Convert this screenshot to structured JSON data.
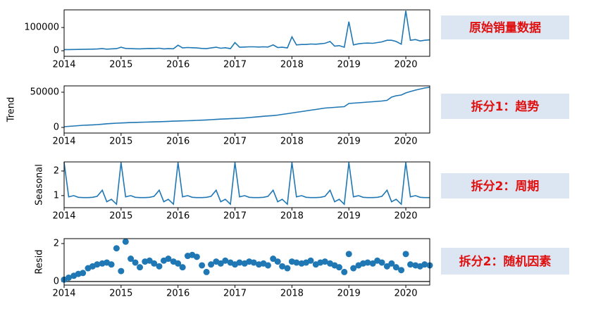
{
  "chart_data": [
    {
      "type": "line",
      "color": "#1f77b4",
      "x": [
        2014.0,
        2014.08,
        2014.17,
        2014.25,
        2014.33,
        2014.42,
        2014.5,
        2014.58,
        2014.67,
        2014.75,
        2014.83,
        2014.92,
        2015.0,
        2015.08,
        2015.17,
        2015.25,
        2015.33,
        2015.42,
        2015.5,
        2015.58,
        2015.67,
        2015.75,
        2015.83,
        2015.92,
        2016.0,
        2016.08,
        2016.17,
        2016.25,
        2016.33,
        2016.42,
        2016.5,
        2016.58,
        2016.67,
        2016.75,
        2016.83,
        2016.92,
        2017.0,
        2017.08,
        2017.17,
        2017.25,
        2017.33,
        2017.42,
        2017.5,
        2017.58,
        2017.67,
        2017.75,
        2017.83,
        2017.92,
        2018.0,
        2018.08,
        2018.17,
        2018.25,
        2018.33,
        2018.42,
        2018.5,
        2018.58,
        2018.67,
        2018.75,
        2018.83,
        2018.92,
        2019.0,
        2019.08,
        2019.17,
        2019.25,
        2019.33,
        2019.42,
        2019.5,
        2019.58,
        2019.67,
        2019.75,
        2019.83,
        2019.92,
        2020.0,
        2020.08,
        2020.17,
        2020.25,
        2020.33,
        2020.42
      ],
      "values": [
        5000,
        5200,
        5500,
        5800,
        6000,
        6500,
        7000,
        7500,
        9000,
        7000,
        8000,
        9000,
        15000,
        10000,
        9000,
        8500,
        8000,
        9000,
        10000,
        9500,
        11000,
        8000,
        9000,
        8500,
        24000,
        12000,
        14000,
        13000,
        12000,
        10000,
        9000,
        12000,
        15000,
        11000,
        13000,
        9000,
        35000,
        15000,
        16000,
        17000,
        17000,
        16000,
        17000,
        16000,
        25000,
        14000,
        15000,
        12000,
        60000,
        25000,
        27000,
        27000,
        29000,
        28000,
        30000,
        32000,
        40000,
        20000,
        22000,
        15000,
        125000,
        25000,
        30000,
        32000,
        33000,
        32000,
        35000,
        38000,
        45000,
        45000,
        40000,
        28000,
        172000,
        45000,
        48000,
        42000,
        45000,
        47000
      ],
      "xlim": [
        2014,
        2020.42
      ],
      "xticks": [
        2014,
        2015,
        2016,
        2017,
        2018,
        2019,
        2020
      ],
      "ylim": [
        -24000,
        176000
      ],
      "yticks": [
        0,
        100000
      ],
      "annotation": "原始销量数据"
    },
    {
      "type": "line",
      "color": "#1f77b4",
      "ylabel": "Trend",
      "x": [
        2014.0,
        2014.08,
        2014.17,
        2014.25,
        2014.33,
        2014.42,
        2014.5,
        2014.58,
        2014.67,
        2014.75,
        2014.83,
        2014.92,
        2015.0,
        2015.08,
        2015.17,
        2015.25,
        2015.33,
        2015.42,
        2015.5,
        2015.58,
        2015.67,
        2015.75,
        2015.83,
        2015.92,
        2016.0,
        2016.08,
        2016.17,
        2016.25,
        2016.33,
        2016.42,
        2016.5,
        2016.58,
        2016.67,
        2016.75,
        2016.83,
        2016.92,
        2017.0,
        2017.08,
        2017.17,
        2017.25,
        2017.33,
        2017.42,
        2017.5,
        2017.58,
        2017.67,
        2017.75,
        2017.83,
        2017.92,
        2018.0,
        2018.08,
        2018.17,
        2018.25,
        2018.33,
        2018.42,
        2018.5,
        2018.58,
        2018.67,
        2018.75,
        2018.83,
        2018.92,
        2019.0,
        2019.08,
        2019.17,
        2019.25,
        2019.33,
        2019.42,
        2019.5,
        2019.58,
        2019.67,
        2019.75,
        2019.83,
        2019.92,
        2020.0,
        2020.08,
        2020.17,
        2020.25,
        2020.33,
        2020.42
      ],
      "values": [
        1000,
        1500,
        2000,
        2500,
        3000,
        3300,
        3600,
        4000,
        4600,
        5200,
        5600,
        6000,
        6300,
        6600,
        6900,
        7100,
        7300,
        7500,
        7700,
        7900,
        8100,
        8300,
        8600,
        8900,
        9100,
        9300,
        9500,
        9700,
        10000,
        10300,
        10600,
        11000,
        11400,
        11800,
        12100,
        12400,
        12700,
        13000,
        13400,
        14000,
        14600,
        15200,
        15800,
        16300,
        16800,
        17500,
        18500,
        19500,
        20500,
        21500,
        22500,
        23500,
        24500,
        25500,
        26500,
        27500,
        28000,
        28500,
        29000,
        29500,
        34000,
        34500,
        35000,
        35500,
        36000,
        36500,
        37000,
        37500,
        38500,
        43000,
        45000,
        46000,
        49000,
        51000,
        53000,
        54500,
        56000,
        57000
      ],
      "xlim": [
        2014,
        2020.42
      ],
      "xticks": [
        2014,
        2015,
        2016,
        2017,
        2018,
        2019,
        2020
      ],
      "ylim": [
        -8000,
        59000
      ],
      "yticks": [
        0,
        50000
      ],
      "annotation": "拆分1：趋势"
    },
    {
      "type": "line",
      "color": "#1f77b4",
      "ylabel": "Seasonal",
      "x": [
        2014.0,
        2014.08,
        2014.17,
        2014.25,
        2014.33,
        2014.42,
        2014.5,
        2014.58,
        2014.67,
        2014.75,
        2014.83,
        2014.92,
        2015.0,
        2015.08,
        2015.17,
        2015.25,
        2015.33,
        2015.42,
        2015.5,
        2015.58,
        2015.67,
        2015.75,
        2015.83,
        2015.92,
        2016.0,
        2016.08,
        2016.17,
        2016.25,
        2016.33,
        2016.42,
        2016.5,
        2016.58,
        2016.67,
        2016.75,
        2016.83,
        2016.92,
        2017.0,
        2017.08,
        2017.17,
        2017.25,
        2017.33,
        2017.42,
        2017.5,
        2017.58,
        2017.67,
        2017.75,
        2017.83,
        2017.92,
        2018.0,
        2018.08,
        2018.17,
        2018.25,
        2018.33,
        2018.42,
        2018.5,
        2018.58,
        2018.67,
        2018.75,
        2018.83,
        2018.92,
        2019.0,
        2019.08,
        2019.17,
        2019.25,
        2019.33,
        2019.42,
        2019.5,
        2019.58,
        2019.67,
        2019.75,
        2019.83,
        2019.92,
        2020.0,
        2020.08,
        2020.17,
        2020.25,
        2020.33,
        2020.42
      ],
      "values": [
        2.35,
        0.95,
        1.0,
        0.93,
        0.92,
        0.92,
        0.93,
        0.97,
        1.22,
        0.75,
        0.85,
        0.65,
        2.35,
        0.95,
        1.0,
        0.93,
        0.92,
        0.92,
        0.93,
        0.97,
        1.22,
        0.75,
        0.85,
        0.65,
        2.35,
        0.95,
        1.0,
        0.93,
        0.92,
        0.92,
        0.93,
        0.97,
        1.22,
        0.75,
        0.85,
        0.65,
        2.35,
        0.95,
        1.0,
        0.93,
        0.92,
        0.92,
        0.93,
        0.97,
        1.22,
        0.75,
        0.85,
        0.65,
        2.35,
        0.95,
        1.0,
        0.93,
        0.92,
        0.92,
        0.93,
        0.97,
        1.22,
        0.75,
        0.85,
        0.65,
        2.35,
        0.95,
        1.0,
        0.93,
        0.92,
        0.92,
        0.93,
        0.97,
        1.22,
        0.75,
        0.85,
        0.65,
        2.35,
        0.95,
        1.0,
        0.93,
        0.92,
        0.92
      ],
      "xlim": [
        2014,
        2020.42
      ],
      "xticks": [
        2014,
        2015,
        2016,
        2017,
        2018,
        2019,
        2020
      ],
      "ylim": [
        0.51,
        2.37
      ],
      "yticks": [
        1,
        2
      ],
      "annotation": "拆分2：周期"
    },
    {
      "type": "scatter",
      "color": "#1f77b4",
      "ylabel": "Resid",
      "x": [
        2014.0,
        2014.08,
        2014.17,
        2014.25,
        2014.33,
        2014.42,
        2014.5,
        2014.58,
        2014.67,
        2014.75,
        2014.83,
        2014.92,
        2015.0,
        2015.08,
        2015.17,
        2015.25,
        2015.33,
        2015.42,
        2015.5,
        2015.58,
        2015.67,
        2015.75,
        2015.83,
        2015.92,
        2016.0,
        2016.08,
        2016.17,
        2016.25,
        2016.33,
        2016.42,
        2016.5,
        2016.58,
        2016.67,
        2016.75,
        2016.83,
        2016.92,
        2017.0,
        2017.08,
        2017.17,
        2017.25,
        2017.33,
        2017.42,
        2017.5,
        2017.58,
        2017.67,
        2017.75,
        2017.83,
        2017.92,
        2018.0,
        2018.08,
        2018.17,
        2018.25,
        2018.33,
        2018.42,
        2018.5,
        2018.58,
        2018.67,
        2018.75,
        2018.83,
        2018.92,
        2019.0,
        2019.08,
        2019.17,
        2019.25,
        2019.33,
        2019.42,
        2019.5,
        2019.58,
        2019.67,
        2019.75,
        2019.83,
        2019.92,
        2020.0,
        2020.08,
        2020.17,
        2020.25,
        2020.33,
        2020.42
      ],
      "values": [
        0.1,
        0.2,
        0.3,
        0.4,
        0.45,
        0.7,
        0.8,
        0.9,
        0.95,
        1.0,
        0.9,
        1.75,
        0.55,
        2.1,
        1.2,
        1.0,
        0.75,
        1.05,
        1.1,
        0.95,
        0.8,
        1.1,
        1.2,
        1.05,
        0.95,
        0.75,
        1.35,
        1.4,
        1.3,
        0.85,
        0.5,
        0.9,
        1.05,
        0.95,
        1.1,
        1.0,
        0.9,
        1.0,
        0.95,
        1.05,
        1.0,
        0.9,
        0.95,
        0.85,
        1.2,
        1.05,
        0.8,
        0.7,
        1.05,
        1.0,
        0.95,
        1.0,
        1.1,
        0.9,
        1.0,
        1.05,
        0.95,
        0.85,
        0.75,
        0.5,
        1.45,
        0.7,
        0.85,
        0.95,
        1.0,
        0.95,
        1.1,
        1.0,
        0.8,
        0.95,
        0.75,
        0.6,
        1.45,
        0.9,
        0.85,
        0.8,
        0.9,
        0.85
      ],
      "xlim": [
        2014,
        2020.42
      ],
      "xticks": [
        2014,
        2015,
        2016,
        2017,
        2018,
        2019,
        2020
      ],
      "ylim": [
        -0.19,
        2.26
      ],
      "yticks": [
        0,
        2
      ],
      "annotation": "拆分2：随机因素"
    }
  ]
}
